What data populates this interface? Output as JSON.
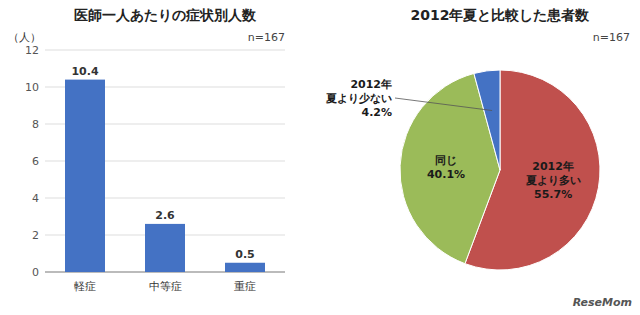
{
  "chart_data": [
    {
      "type": "bar",
      "title": "医師一人あたりの症状別人数",
      "subtitle": "n=167",
      "categories": [
        "軽症",
        "中等症",
        "重症"
      ],
      "values": [
        10.4,
        2.6,
        0.5
      ],
      "color": "#4472C4",
      "ylabel": "（人）",
      "ylim": [
        0,
        12
      ],
      "yticks": [
        0,
        2,
        4,
        6,
        8,
        10,
        12
      ],
      "grid": true,
      "data_labels": true
    },
    {
      "type": "pie",
      "title": "2012年夏と比較した患者数",
      "subtitle": "n=167",
      "categories": [
        "2012年\n夏より多い",
        "同じ",
        "2012年\n夏より少ない"
      ],
      "values": [
        55.7,
        40.1,
        4.2
      ],
      "value_labels": [
        "55.7%",
        "40.1%",
        "4.2%"
      ],
      "colors": [
        "#C0504D",
        "#9BBB59",
        "#4472C4"
      ],
      "data_labels": true,
      "annotations": [
        "ReseMom"
      ]
    }
  ]
}
